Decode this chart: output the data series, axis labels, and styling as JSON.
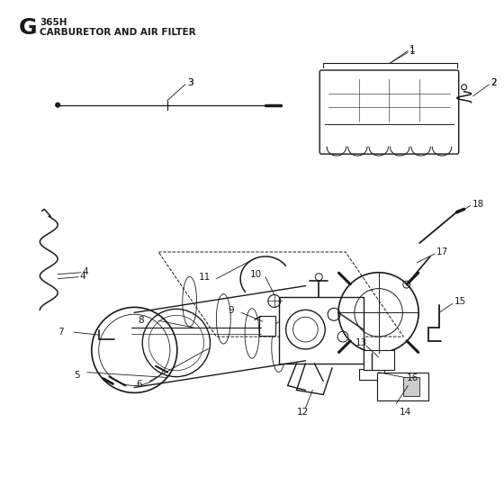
{
  "bg_color": "#ffffff",
  "line_color": "#1a1a1a",
  "fig_width": 5.6,
  "fig_height": 5.6,
  "dpi": 100,
  "title_letter": "G",
  "title_model": "365H",
  "title_desc": "CARBURETOR AND AIR FILTER"
}
